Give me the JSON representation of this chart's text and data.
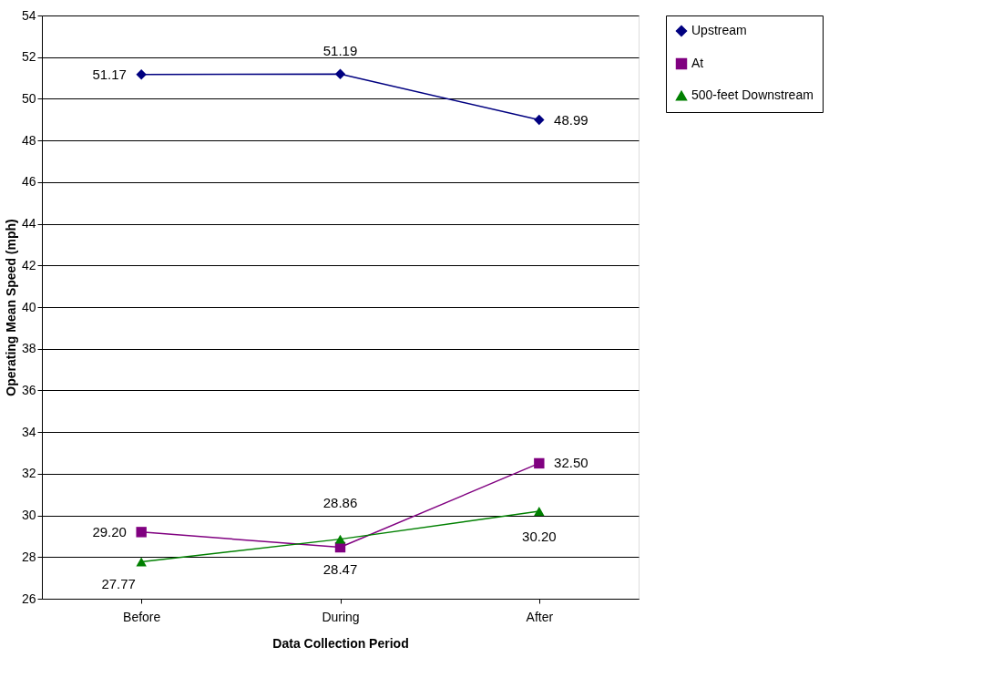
{
  "chart_data": {
    "type": "line",
    "xlabel": "Data Collection Period",
    "ylabel": "Operating Mean Speed (mph)",
    "categories": [
      "Before",
      "During",
      "After"
    ],
    "series": [
      {
        "name": "Upstream",
        "color": "#000080",
        "marker": "diamond",
        "values": [
          51.17,
          51.19,
          48.99
        ],
        "value_labels": [
          "51.17",
          "51.19",
          "48.99"
        ]
      },
      {
        "name": "At",
        "color": "#800080",
        "marker": "square",
        "values": [
          29.2,
          28.47,
          32.5
        ],
        "value_labels": [
          "29.20",
          "28.47",
          "32.50"
        ]
      },
      {
        "name": "500-feet Downstream",
        "color": "#008000",
        "marker": "triangle",
        "values": [
          27.77,
          28.86,
          30.2
        ],
        "value_labels": [
          "27.77",
          "28.86",
          "30.20"
        ]
      }
    ],
    "ylim": [
      26,
      54
    ],
    "yticks": [
      26,
      28,
      30,
      32,
      34,
      36,
      38,
      40,
      42,
      44,
      46,
      48,
      50,
      52,
      54
    ],
    "grid": "y",
    "legend": "right",
    "line_style": "solid"
  }
}
